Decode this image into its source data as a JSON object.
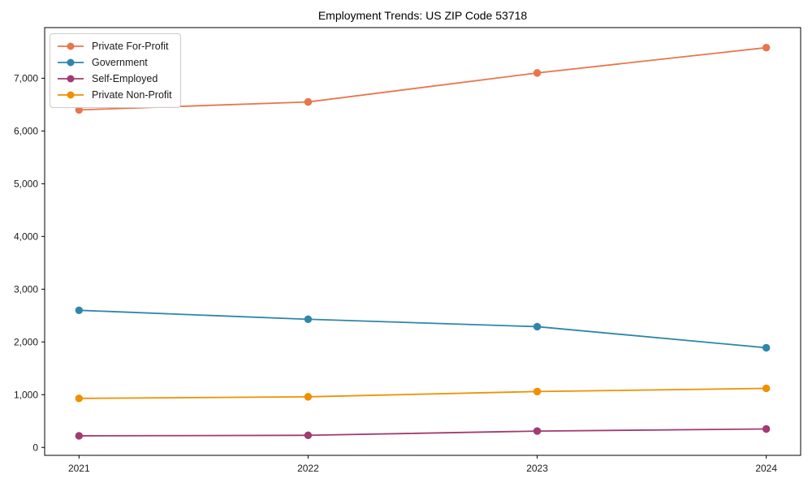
{
  "title": "Employment Trends: US ZIP Code 53718",
  "chart_data": {
    "type": "line",
    "title": "Employment Trends: US ZIP Code 53718",
    "x": [
      "2021",
      "2022",
      "2023",
      "2024"
    ],
    "series": [
      {
        "name": "Private For-Profit",
        "color": "#E8764B",
        "values": [
          6400,
          6550,
          7100,
          7580
        ]
      },
      {
        "name": "Government",
        "color": "#2E86AB",
        "values": [
          2600,
          2430,
          2290,
          1890
        ]
      },
      {
        "name": "Self-Employed",
        "color": "#A23B72",
        "values": [
          220,
          230,
          310,
          350
        ]
      },
      {
        "name": "Private Non-Profit",
        "color": "#F18F01",
        "values": [
          930,
          960,
          1060,
          1120
        ]
      }
    ],
    "xlabel": "",
    "ylabel": "",
    "ylim": [
      -150,
      7960
    ],
    "yticks": [
      0,
      1000,
      2000,
      3000,
      4000,
      5000,
      6000,
      7000
    ],
    "ytick_format": "comma",
    "grid": false,
    "marker": "o",
    "legend_position": "upper left",
    "frame_color": "#000000",
    "background_color": "#ffffff"
  }
}
